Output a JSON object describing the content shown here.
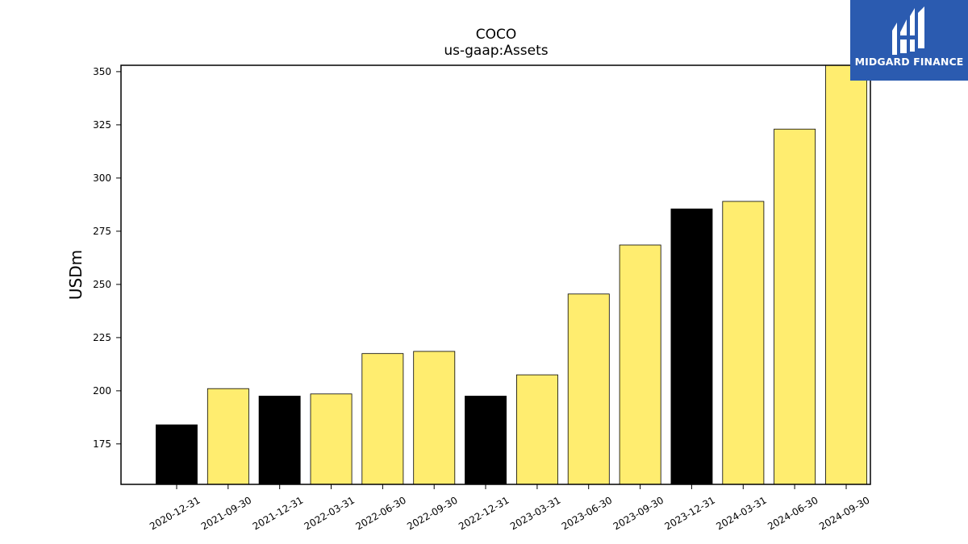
{
  "logo": {
    "text": "MIDGARD FINANCE",
    "bg": "#2b5bb0"
  },
  "chart_data": {
    "type": "bar",
    "title": "COCO",
    "subtitle": "us-gaap:Assets",
    "xlabel": "",
    "ylabel": "USDm",
    "ylim": [
      156,
      353
    ],
    "yticks": [
      175,
      200,
      225,
      250,
      275,
      300,
      325,
      350
    ],
    "grid": false,
    "categories": [
      "2020-12-31",
      "2021-09-30",
      "2021-12-31",
      "2022-03-31",
      "2022-06-30",
      "2022-09-30",
      "2022-12-31",
      "2023-03-31",
      "2023-06-30",
      "2023-09-30",
      "2023-12-31",
      "2024-03-31",
      "2024-06-30",
      "2024-09-30"
    ],
    "values": [
      184,
      201,
      197.5,
      198.5,
      217.5,
      218.5,
      197.5,
      207.5,
      245.5,
      268.5,
      285.5,
      289,
      323,
      353
    ],
    "bar_colors": [
      "#000000",
      "#ffed6f",
      "#000000",
      "#ffed6f",
      "#ffed6f",
      "#ffed6f",
      "#000000",
      "#ffed6f",
      "#ffed6f",
      "#ffed6f",
      "#000000",
      "#ffed6f",
      "#ffed6f",
      "#ffed6f"
    ]
  }
}
